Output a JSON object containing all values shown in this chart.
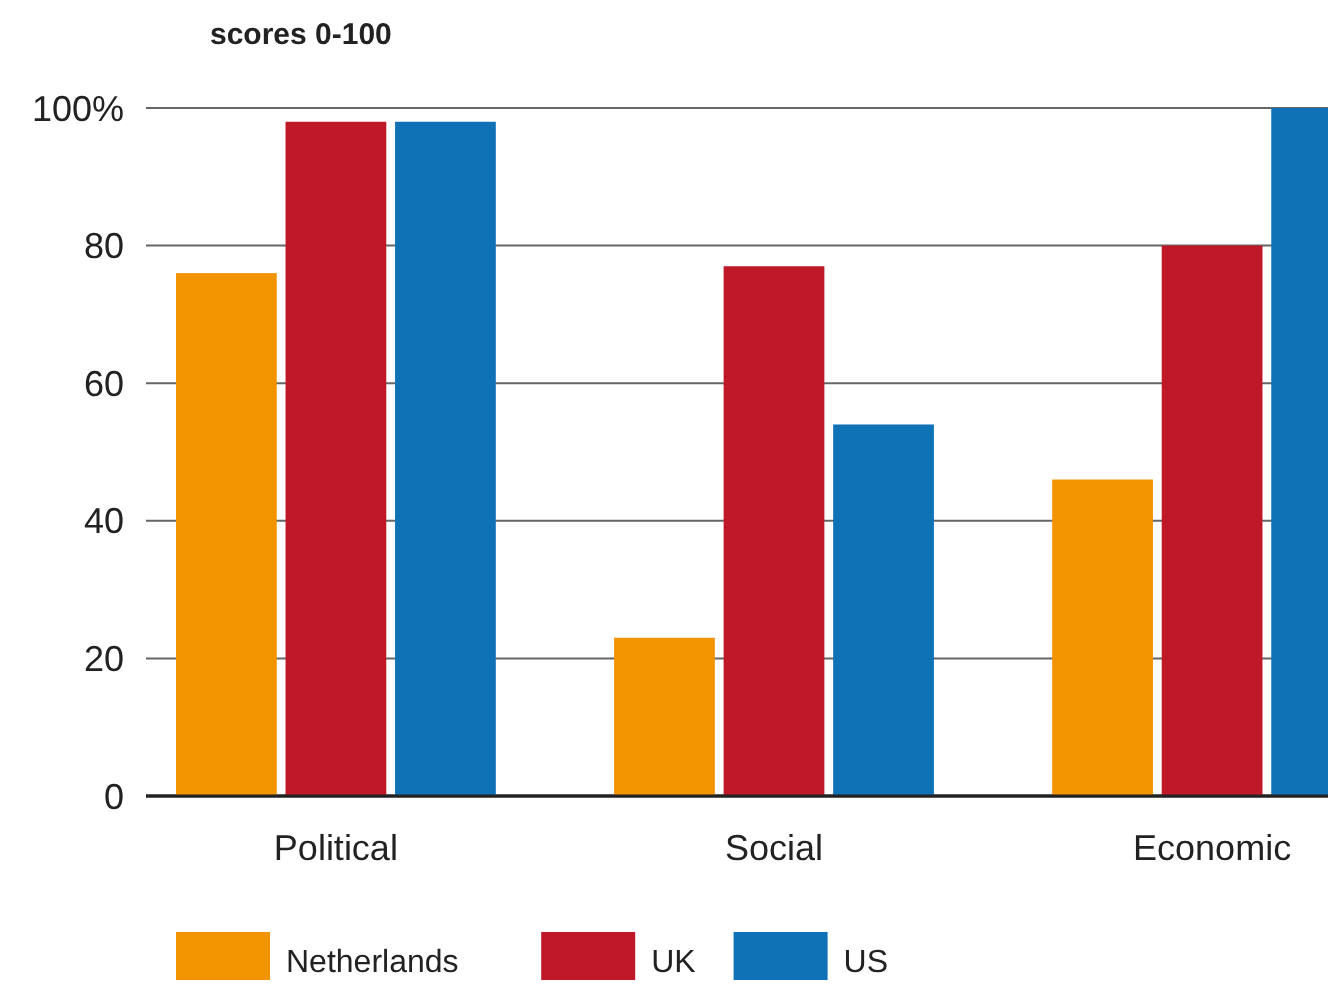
{
  "chart_data": {
    "type": "bar",
    "title": "scores 0-100",
    "categories": [
      "Political",
      "Social",
      "Economic"
    ],
    "series": [
      {
        "name": "Netherlands",
        "color": "#f29400",
        "values": [
          76,
          23,
          46
        ]
      },
      {
        "name": "UK",
        "color": "#be1829",
        "values": [
          98,
          77,
          80
        ]
      },
      {
        "name": "US",
        "color": "#1072b6",
        "values": [
          98,
          54,
          100
        ]
      }
    ],
    "ylim": [
      0,
      100
    ],
    "yticks": [
      0,
      20,
      40,
      60,
      80,
      {
        "value": 100,
        "label": "100%"
      }
    ],
    "grid": "y",
    "legend": "bottom left"
  }
}
